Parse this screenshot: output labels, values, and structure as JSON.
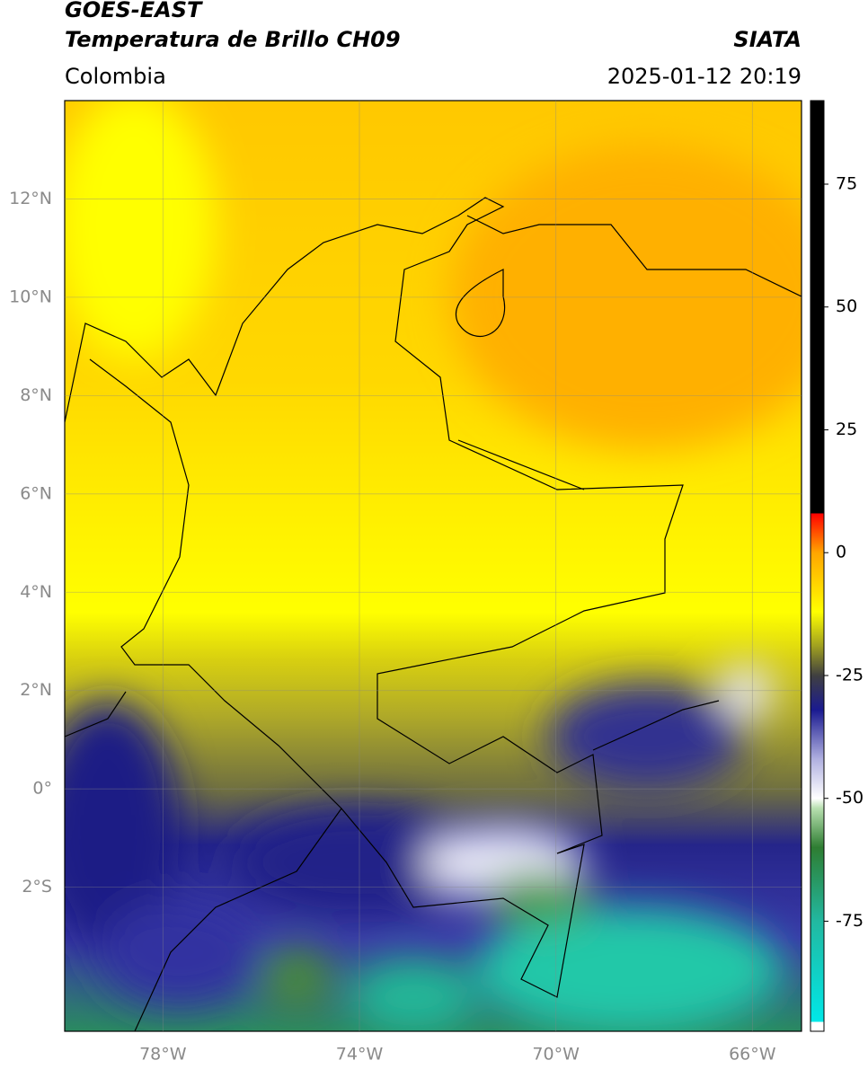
{
  "header": {
    "satellite": "GOES-EAST",
    "product": "Temperatura de Brillo CH09",
    "region": "Colombia",
    "source": "SIATA",
    "timestamp": "2025-01-12 20:19"
  },
  "map": {
    "lonlim": [
      -80,
      -65
    ],
    "latlim": [
      -4.93,
      14
    ],
    "xticks": [
      {
        "value": -78,
        "label": "78°W"
      },
      {
        "value": -74,
        "label": "74°W"
      },
      {
        "value": -70,
        "label": "70°W"
      },
      {
        "value": -66,
        "label": "66°W"
      }
    ],
    "yticks": [
      {
        "value": 12,
        "label": "12°N"
      },
      {
        "value": 10,
        "label": "10°N"
      },
      {
        "value": 8,
        "label": "8°N"
      },
      {
        "value": 6,
        "label": "6°N"
      },
      {
        "value": 4,
        "label": "4°N"
      },
      {
        "value": 2,
        "label": "2°N"
      },
      {
        "value": 0,
        "label": "0°"
      },
      {
        "value": -2,
        "label": "2°S"
      }
    ],
    "grid": true
  },
  "colorbar": {
    "lim": [
      -97.4,
      92
    ],
    "ticks": [
      75,
      50,
      25,
      0,
      -25,
      -50,
      -75
    ],
    "stops": [
      [
        -97.4,
        "#ffffff"
      ],
      [
        -95.5,
        "#ffffff"
      ],
      [
        -95.5,
        "#00e8e8"
      ],
      [
        -75,
        "#22b8a0"
      ],
      [
        -60,
        "#2e7d32"
      ],
      [
        -52,
        "#b8e0b0"
      ],
      [
        -50,
        "#ffffff"
      ],
      [
        -42,
        "#b0b0e0"
      ],
      [
        -32,
        "#1a1a90"
      ],
      [
        -25,
        "#404040"
      ],
      [
        -19,
        "#a0a020"
      ],
      [
        -12,
        "#ffff00"
      ],
      [
        0,
        "#ffa500"
      ],
      [
        8,
        "#ff0000"
      ],
      [
        8,
        "#000000"
      ],
      [
        92,
        "#000000"
      ]
    ]
  }
}
